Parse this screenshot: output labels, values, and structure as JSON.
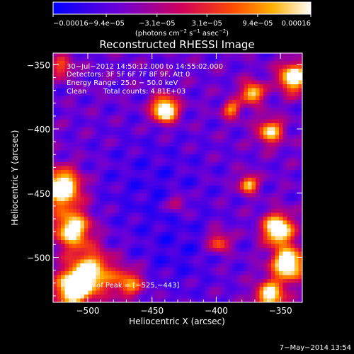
{
  "chart_data": {
    "type": "heatmap",
    "title": "Reconstructed RHESSI Image",
    "xlabel": "Heliocentric X (arcsec)",
    "ylabel": "Heliocentric Y (arcsec)",
    "xlim": [
      -527,
      -333
    ],
    "ylim": [
      -535,
      -341
    ],
    "xticks": [
      -500,
      -450,
      -400,
      -350
    ],
    "xtick_labels": [
      "−500",
      "−450",
      "−400",
      "−350"
    ],
    "yticks": [
      -500,
      -450,
      -400,
      -350
    ],
    "ytick_labels": [
      "−500",
      "−450",
      "−400",
      "−350"
    ],
    "colorbar": {
      "min": -0.00016,
      "max": 0.00016,
      "ticks": [
        -0.00016,
        -9.4e-05,
        -3.1e-05,
        3.1e-05,
        9.4e-05,
        0.00016
      ],
      "tick_labels": [
        "−0.00016",
        "−9.4e−05",
        "−3.1e−05",
        "3.1e−05",
        "9.4e−05",
        "0.00016"
      ],
      "unit_main": "(photons cm",
      "unit_exp1": "−2",
      "unit_mid": " s",
      "unit_exp2": "−1",
      "unit_end": " asec",
      "unit_exp3": "−2",
      "unit_close": ")",
      "colors": [
        "#0000ff",
        "#6a00d8",
        "#d0005a",
        "#ff4c00",
        "#ffb000",
        "#ffffff"
      ]
    },
    "annotations": [
      "30−Jul−2012 14:50:12.000 to 14:55:02.000",
      "Detectors: 3F 5F 6F 7F 8F 9F, Att 0",
      "Energy Range: 25.0 − 50.0 keV",
      "Clean",
      "Total counts: 4.81E+03",
      "Position of Peak = [−525,−443]"
    ],
    "sources": [
      {
        "x": -440,
        "y": -385,
        "peak": 1.0,
        "sigma": 7
      },
      {
        "x": -520,
        "y": -446,
        "peak": 1.0,
        "sigma": 10
      },
      {
        "x": -512,
        "y": -478,
        "peak": 0.85,
        "sigma": 10
      },
      {
        "x": -498,
        "y": -512,
        "peak": 0.8,
        "sigma": 12
      },
      {
        "x": -512,
        "y": -525,
        "peak": 0.9,
        "sigma": 9
      },
      {
        "x": -468,
        "y": -520,
        "peak": 0.55,
        "sigma": 8
      },
      {
        "x": -352,
        "y": -478,
        "peak": 1.0,
        "sigma": 8
      },
      {
        "x": -344,
        "y": -505,
        "peak": 0.95,
        "sigma": 9
      },
      {
        "x": -358,
        "y": -530,
        "peak": 0.8,
        "sigma": 8
      },
      {
        "x": -340,
        "y": -360,
        "peak": 0.9,
        "sigma": 8
      },
      {
        "x": -372,
        "y": -372,
        "peak": 0.75,
        "sigma": 6
      },
      {
        "x": -358,
        "y": -402,
        "peak": 0.7,
        "sigma": 7
      },
      {
        "x": -388,
        "y": -385,
        "peak": 0.55,
        "sigma": 5
      },
      {
        "x": -375,
        "y": -443,
        "peak": 0.7,
        "sigma": 5
      },
      {
        "x": -398,
        "y": -488,
        "peak": 0.5,
        "sigma": 6
      },
      {
        "x": -520,
        "y": -352,
        "peak": 0.45,
        "sigma": 6
      },
      {
        "x": -430,
        "y": -458,
        "peak": 0.35,
        "sigma": 5
      }
    ],
    "grid": false,
    "footer": "7−May−2014 13:54"
  }
}
